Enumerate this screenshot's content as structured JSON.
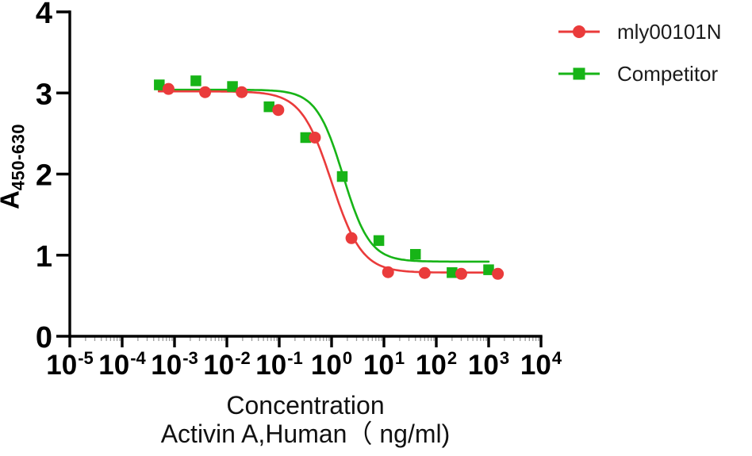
{
  "chart_data": {
    "type": "line",
    "subtype": "dose-response-4PL-log-x",
    "title": "",
    "xlabel_line1": "Concentration",
    "xlabel_line2": "Activin A,Human（ ng/ml)",
    "ylabel_base": "A",
    "ylabel_subscript": "450-630",
    "x_scale": "log10",
    "x_tick_base": "10",
    "x_tick_exponents": [
      -5,
      -4,
      -3,
      -2,
      -1,
      0,
      1,
      2,
      3,
      4
    ],
    "y_ticks": [
      0,
      1,
      2,
      3,
      4
    ],
    "ylim": [
      0,
      4
    ],
    "xlim_exponents": [
      -5,
      4
    ],
    "grid": false,
    "legend_position": "top-right",
    "axis_color": "#000000",
    "minor_tick_color": "#9c9c9c",
    "text_color": "#000000",
    "series": [
      {
        "name": "mly00101N",
        "color": "#ea3b3b",
        "marker": "circle",
        "x_ng_ml": [
          0.000768,
          0.00384,
          0.0192,
          0.096,
          0.48,
          2.4,
          12,
          60,
          300,
          1500
        ],
        "y": [
          3.05,
          3.01,
          3.01,
          2.79,
          2.45,
          1.21,
          0.79,
          0.78,
          0.77,
          0.77
        ],
        "fit": {
          "top": 3.02,
          "bottom": 0.785,
          "logIC50": 0.0,
          "hill": 1.5,
          "log_x_start": -3.3,
          "log_x_end": 3.18
        }
      },
      {
        "name": "Competitor",
        "color": "#17b417",
        "marker": "square",
        "x_ng_ml": [
          0.000512,
          0.00256,
          0.0128,
          0.064,
          0.32,
          1.6,
          8,
          40,
          200,
          1000
        ],
        "y": [
          3.1,
          3.15,
          3.08,
          2.83,
          2.45,
          1.97,
          1.18,
          1.01,
          0.785,
          0.82
        ],
        "fit": {
          "top": 3.04,
          "bottom": 0.92,
          "logIC50": 0.22,
          "hill": 1.7,
          "log_x_start": -3.3,
          "log_x_end": 3.0
        }
      }
    ]
  }
}
